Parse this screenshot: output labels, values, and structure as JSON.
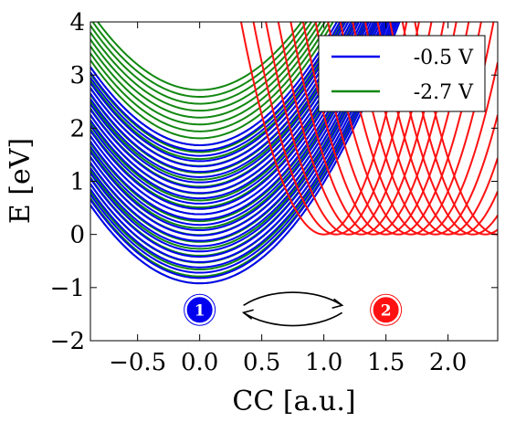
{
  "chart_data": {
    "type": "line",
    "xlabel": "CC [a.u.]",
    "ylabel": "E [eV]",
    "xlim": [
      -0.88,
      2.4
    ],
    "ylim": [
      -2,
      4
    ],
    "xticks": [
      -0.5,
      0.0,
      0.5,
      1.0,
      1.5,
      2.0
    ],
    "xtick_labels": [
      "−0.5",
      "0.0",
      "0.5",
      "1.0",
      "1.5",
      "2.0"
    ],
    "yticks": [
      -2,
      -1,
      0,
      1,
      2,
      3,
      4
    ],
    "ytick_labels": [
      "−2",
      "−1",
      "0",
      "1",
      "2",
      "3",
      "4"
    ],
    "grid": false,
    "legend": {
      "position": "top-right",
      "entries": [
        {
          "label": "-0.5 V",
          "color": "#0000ee"
        },
        {
          "label": "-2.7 V",
          "color": "#118811"
        }
      ]
    },
    "series": [
      {
        "name": "-0.5 V",
        "color": "#0000ee",
        "state_1_parabolas": {
          "center_x": 0.0,
          "curvature": 1.9,
          "minima": [
            -0.92,
            -0.82,
            -0.72,
            -0.62,
            -0.52,
            -0.42,
            -0.32,
            -0.22,
            -0.12,
            -0.02,
            0.08,
            0.18,
            0.28,
            0.38,
            0.48,
            0.58,
            0.68,
            0.78,
            0.88,
            0.98,
            1.08,
            1.18,
            1.28,
            1.38,
            1.48,
            1.58,
            1.68
          ]
        }
      },
      {
        "name": "-2.7 V",
        "color": "#118811",
        "state_1_parabolas": {
          "center_x": 0.0,
          "curvature": 1.9,
          "minima": [
            -0.92,
            -0.79,
            -0.66,
            -0.53,
            -0.4,
            -0.27,
            -0.14,
            -0.01,
            0.12,
            0.25,
            0.38,
            0.51,
            0.64,
            0.77,
            0.9,
            1.03,
            1.16,
            1.29,
            1.42,
            1.55,
            1.68,
            1.81,
            1.94,
            2.07,
            2.2,
            2.33,
            2.46,
            2.59,
            2.72
          ]
        }
      },
      {
        "color": "#ff1111",
        "state_2_parabolas": {
          "minimum_energy": 0.0,
          "curvature": 9.0,
          "centers_x": [
            1.0,
            1.1,
            1.2,
            1.3,
            1.4,
            1.5,
            1.6,
            1.7,
            1.8,
            1.9,
            2.0,
            2.1,
            2.2,
            2.3,
            2.4
          ]
        }
      }
    ],
    "annotations": {
      "state_1": {
        "label": "1",
        "x": 0.0,
        "y": -1.42,
        "color": "#0000ee"
      },
      "state_2": {
        "label": "2",
        "x": 1.5,
        "y": -1.42,
        "color": "#ff1111"
      },
      "transition_arrows": {
        "from": "1",
        "to": "2",
        "bidirectional": true
      }
    }
  }
}
